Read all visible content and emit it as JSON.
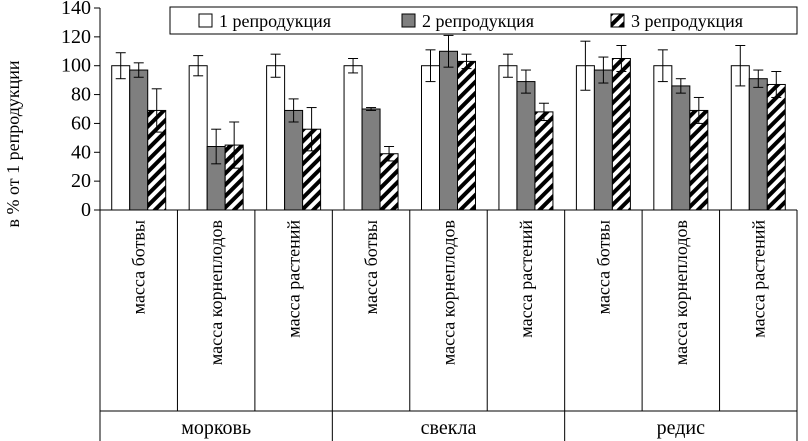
{
  "chart_data": {
    "type": "bar",
    "ylabel": "в % от 1 репродукции",
    "ylim": [
      0,
      140
    ],
    "yticks": [
      0,
      20,
      40,
      60,
      80,
      100,
      120,
      140
    ],
    "groups": [
      "морковь",
      "свекла",
      "редис"
    ],
    "categories": [
      "масса ботвы",
      "масса корнеплодов",
      "масса растений",
      "масса ботвы",
      "масса корнеплодов",
      "масса растений",
      "масса ботвы",
      "масса корнеплодов",
      "масса растений"
    ],
    "series": [
      {
        "name": "1 репродукция",
        "pattern": "white",
        "values": [
          100,
          100,
          100,
          100,
          100,
          100,
          100,
          100,
          100
        ],
        "errors": [
          9,
          7,
          8,
          5,
          11,
          8,
          17,
          11,
          14
        ]
      },
      {
        "name": "2 репродукция",
        "pattern": "gray",
        "values": [
          97,
          44,
          69,
          70,
          110,
          89,
          97,
          86,
          91
        ],
        "errors": [
          5,
          12,
          8,
          1,
          11,
          8,
          9,
          5,
          6
        ]
      },
      {
        "name": "3 репродукция",
        "pattern": "hatch",
        "values": [
          69,
          45,
          56,
          39,
          103,
          68,
          105,
          69,
          87
        ],
        "errors": [
          15,
          16,
          15,
          5,
          5,
          6,
          9,
          9,
          9
        ]
      }
    ],
    "legend_position": "top"
  },
  "colors": {
    "gray_fill": "#7f7f7f",
    "white_fill": "#ffffff",
    "line": "#000000"
  }
}
